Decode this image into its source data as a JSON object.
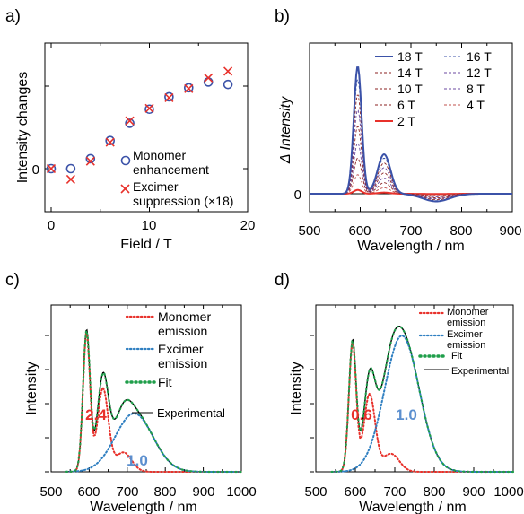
{
  "colors": {
    "blue": "#3b52a8",
    "red": "#e8312b",
    "dark_red": "#8b2222",
    "purple": "#6b4aa0",
    "green": "#1f9e4a",
    "dotblue": "#2f7fc1",
    "dotred": "#e8312b",
    "black": "#000000"
  },
  "chart_data": [
    {
      "panel_label": "a)",
      "type": "scatter",
      "xlabel": "Field / T",
      "ylabel": "Intensity changes",
      "xlim": [
        0,
        20
      ],
      "xticks": [
        "0",
        "10",
        "20"
      ],
      "yticks": [
        "0"
      ],
      "grid": false,
      "series": [
        {
          "name": "Monomer enhancement",
          "marker": "circle",
          "color": "#3b52a8",
          "x": [
            0,
            2,
            4,
            6,
            8,
            10,
            12,
            14,
            16,
            18
          ],
          "y": [
            0,
            0.0,
            0.12,
            0.34,
            0.55,
            0.72,
            0.87,
            0.98,
            1.05,
            1.02
          ]
        },
        {
          "name": "Excimer suppression (×18)",
          "marker": "x",
          "color": "#e8312b",
          "x": [
            0,
            2,
            4,
            6,
            8,
            10,
            12,
            14,
            16,
            18
          ],
          "y": [
            0,
            -0.13,
            0.09,
            0.32,
            0.58,
            0.73,
            0.86,
            0.97,
            1.1,
            1.18
          ]
        }
      ],
      "legend": [
        "Monomer",
        "enhancement",
        "Excimer",
        "suppression (×18)"
      ]
    },
    {
      "panel_label": "b)",
      "type": "line",
      "xlabel": "Wavelength / nm",
      "ylabel": "Δ Intensity",
      "xlim": [
        500,
        900
      ],
      "xticks": [
        "500",
        "600",
        "700",
        "800",
        "900"
      ],
      "yticks": [
        "0"
      ],
      "peaks_nm": [
        595,
        645
      ],
      "series": [
        {
          "name": "18 T",
          "amplitude": 1.0,
          "style": "solid",
          "color": "#3b52a8"
        },
        {
          "name": "16 T",
          "amplitude": 0.9,
          "style": "dashed",
          "color": "#3b52a8"
        },
        {
          "name": "14 T",
          "amplitude": 0.78,
          "style": "dashed",
          "color": "#8b2222"
        },
        {
          "name": "12 T",
          "amplitude": 0.66,
          "style": "dashed",
          "color": "#6b4aa0"
        },
        {
          "name": "10 T",
          "amplitude": 0.53,
          "style": "dashed",
          "color": "#8b2222"
        },
        {
          "name": "8 T",
          "amplitude": 0.4,
          "style": "dashed",
          "color": "#6b4aa0"
        },
        {
          "name": "6 T",
          "amplitude": 0.28,
          "style": "dashed",
          "color": "#8b2222"
        },
        {
          "name": "4 T",
          "amplitude": 0.15,
          "style": "dashed",
          "color": "#c0504d"
        },
        {
          "name": "2 T",
          "amplitude": 0.03,
          "style": "solid",
          "color": "#e8312b"
        }
      ]
    },
    {
      "panel_label": "c)",
      "type": "line",
      "xlabel": "Wavelength / nm",
      "ylabel": "Intensity",
      "xlim": [
        500,
        1000
      ],
      "xticks": [
        "500",
        "600",
        "700",
        "800",
        "900",
        "1000"
      ],
      "series": [
        {
          "name": "Monomer emission",
          "style": "dotted",
          "color": "#e8312b"
        },
        {
          "name": "Excimer emission",
          "style": "dotted",
          "color": "#2f7fc1"
        },
        {
          "name": "Fit",
          "style": "dotted",
          "color": "#1f9e4a"
        },
        {
          "name": "Experimental",
          "style": "solid",
          "color": "#000000"
        }
      ],
      "legend": [
        "Monomer",
        "emission",
        "Excimer",
        "emission",
        "Fit",
        "Experimental"
      ],
      "ratio_labels": [
        "2.4",
        "1.0"
      ]
    },
    {
      "panel_label": "d)",
      "type": "line",
      "xlabel": "Wavelength / nm",
      "ylabel": "Intensity",
      "xlim": [
        500,
        1000
      ],
      "xticks": [
        "500",
        "600",
        "700",
        "800",
        "900",
        "1000"
      ],
      "series": [
        {
          "name": "Monomer emission",
          "style": "dotted",
          "color": "#e8312b"
        },
        {
          "name": "Excimer emission",
          "style": "dotted",
          "color": "#2f7fc1"
        },
        {
          "name": "Fit",
          "style": "dotted",
          "color": "#1f9e4a"
        },
        {
          "name": "Experimental",
          "style": "solid",
          "color": "#000000"
        }
      ],
      "legend": [
        "Monomer",
        "emission",
        "Excimer",
        "emission",
        "Fit",
        "Experimental"
      ],
      "ratio_labels": [
        "0.6",
        "1.0"
      ]
    }
  ]
}
